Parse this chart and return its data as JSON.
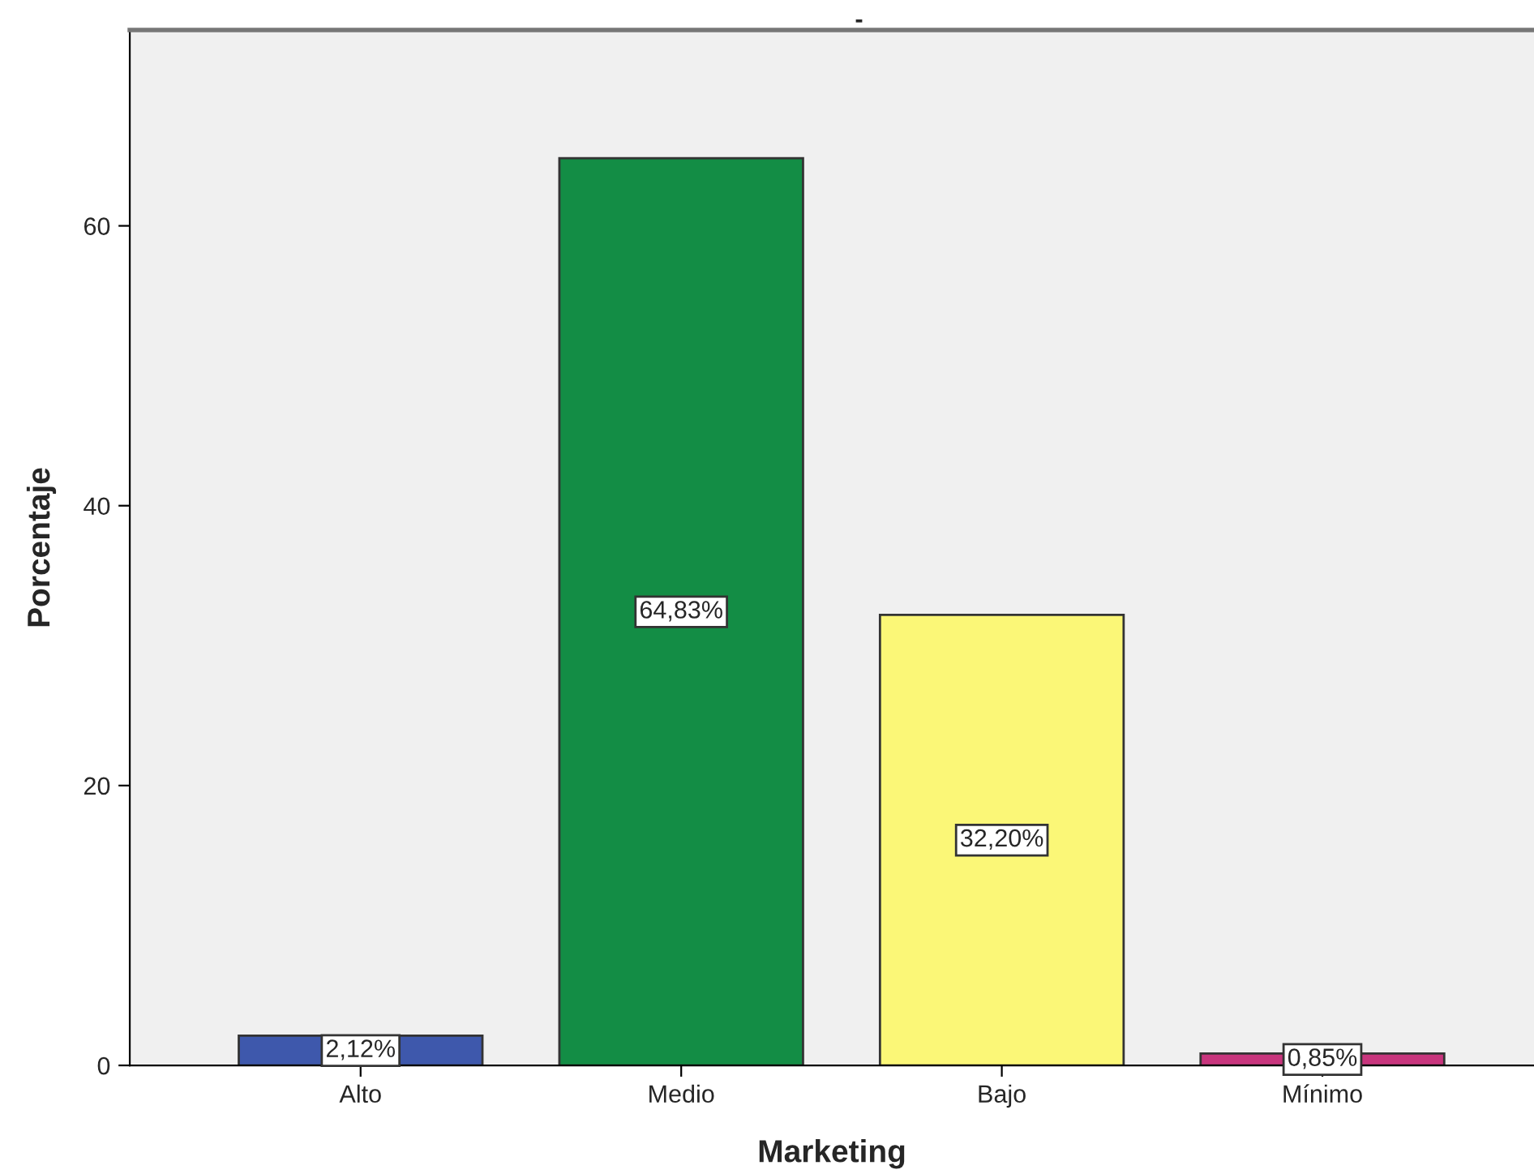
{
  "chart_data": {
    "type": "bar",
    "title": "-",
    "xlabel": "Marketing",
    "ylabel": "Porcentaje",
    "categories": [
      "Alto",
      "Medio",
      "Bajo",
      "Mínimo"
    ],
    "values": [
      2.12,
      64.83,
      32.2,
      0.85
    ],
    "colors": [
      "#3e58ac",
      "#138d45",
      "#fbf777",
      "#c8357d"
    ],
    "value_labels": [
      "2,12%",
      "64,83%",
      "32,20%",
      "0,85%"
    ],
    "ylim": [
      0,
      74
    ],
    "yticks": [
      0,
      20,
      40,
      60
    ],
    "grid": false,
    "legend": false
  }
}
